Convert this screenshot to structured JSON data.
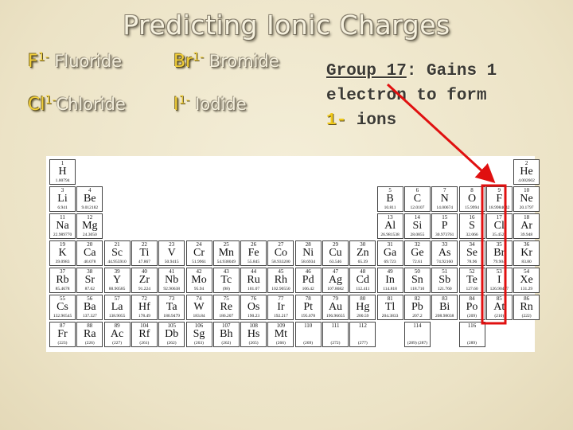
{
  "title": "Predicting Ionic Charges",
  "ions": [
    {
      "symbol": "F",
      "charge": "1-",
      "name": "Fluoride"
    },
    {
      "symbol": "Br",
      "charge": "1-",
      "name": "Bromide"
    },
    {
      "symbol": "Cl",
      "charge": "1-",
      "name": "Chloride"
    },
    {
      "symbol": "I",
      "charge": "1-",
      "name": "Iodide"
    }
  ],
  "note": {
    "group": "Group 17",
    "line1": ": Gains 1",
    "line2": "electron to form",
    "charge": "1-",
    "tail": "ions"
  },
  "table": {
    "rows": [
      [
        {
          "number": "1",
          "symbol": "H",
          "mass": "1.00794"
        },
        null,
        null,
        null,
        null,
        null,
        null,
        null,
        null,
        null,
        null,
        null,
        null,
        null,
        null,
        null,
        null,
        {
          "number": "2",
          "symbol": "He",
          "mass": "4.002602"
        }
      ],
      [
        {
          "number": "3",
          "symbol": "Li",
          "mass": "6.941"
        },
        {
          "number": "4",
          "symbol": "Be",
          "mass": "9.012182"
        },
        null,
        null,
        null,
        null,
        null,
        null,
        null,
        null,
        null,
        null,
        {
          "number": "5",
          "symbol": "B",
          "mass": "10.811"
        },
        {
          "number": "6",
          "symbol": "C",
          "mass": "12.0107"
        },
        {
          "number": "7",
          "symbol": "N",
          "mass": "14.00674"
        },
        {
          "number": "8",
          "symbol": "O",
          "mass": "15.9994"
        },
        {
          "number": "9",
          "symbol": "F",
          "mass": "18.9984032"
        },
        {
          "number": "10",
          "symbol": "Ne",
          "mass": "20.1797"
        }
      ],
      [
        {
          "number": "11",
          "symbol": "Na",
          "mass": "22.989770"
        },
        {
          "number": "12",
          "symbol": "Mg",
          "mass": "24.3050"
        },
        null,
        null,
        null,
        null,
        null,
        null,
        null,
        null,
        null,
        null,
        {
          "number": "13",
          "symbol": "Al",
          "mass": "26.981538"
        },
        {
          "number": "14",
          "symbol": "Si",
          "mass": "28.0855"
        },
        {
          "number": "15",
          "symbol": "P",
          "mass": "30.973761"
        },
        {
          "number": "16",
          "symbol": "S",
          "mass": "32.066"
        },
        {
          "number": "17",
          "symbol": "Cl",
          "mass": "35.4527"
        },
        {
          "number": "18",
          "symbol": "Ar",
          "mass": "39.948"
        }
      ],
      [
        {
          "number": "19",
          "symbol": "K",
          "mass": "39.0983"
        },
        {
          "number": "20",
          "symbol": "Ca",
          "mass": "40.078"
        },
        {
          "number": "21",
          "symbol": "Sc",
          "mass": "44.955910"
        },
        {
          "number": "22",
          "symbol": "Ti",
          "mass": "47.867"
        },
        {
          "number": "23",
          "symbol": "V",
          "mass": "50.9415"
        },
        {
          "number": "24",
          "symbol": "Cr",
          "mass": "51.9961"
        },
        {
          "number": "25",
          "symbol": "Mn",
          "mass": "54.938049"
        },
        {
          "number": "26",
          "symbol": "Fe",
          "mass": "55.845"
        },
        {
          "number": "27",
          "symbol": "Co",
          "mass": "58.933200"
        },
        {
          "number": "28",
          "symbol": "Ni",
          "mass": "58.6934"
        },
        {
          "number": "29",
          "symbol": "Cu",
          "mass": "63.546"
        },
        {
          "number": "30",
          "symbol": "Zn",
          "mass": "65.39"
        },
        {
          "number": "31",
          "symbol": "Ga",
          "mass": "69.723"
        },
        {
          "number": "32",
          "symbol": "Ge",
          "mass": "72.61"
        },
        {
          "number": "33",
          "symbol": "As",
          "mass": "74.92160"
        },
        {
          "number": "34",
          "symbol": "Se",
          "mass": "78.96"
        },
        {
          "number": "35",
          "symbol": "Br",
          "mass": "79.904"
        },
        {
          "number": "36",
          "symbol": "Kr",
          "mass": "83.80"
        }
      ],
      [
        {
          "number": "37",
          "symbol": "Rb",
          "mass": "85.4678"
        },
        {
          "number": "38",
          "symbol": "Sr",
          "mass": "87.62"
        },
        {
          "number": "39",
          "symbol": "Y",
          "mass": "88.90585"
        },
        {
          "number": "40",
          "symbol": "Zr",
          "mass": "91.224"
        },
        {
          "number": "41",
          "symbol": "Nb",
          "mass": "92.90638"
        },
        {
          "number": "42",
          "symbol": "Mo",
          "mass": "95.94"
        },
        {
          "number": "43",
          "symbol": "Tc",
          "mass": "(98)"
        },
        {
          "number": "44",
          "symbol": "Ru",
          "mass": "101.07"
        },
        {
          "number": "45",
          "symbol": "Rh",
          "mass": "102.90550"
        },
        {
          "number": "46",
          "symbol": "Pd",
          "mass": "106.42"
        },
        {
          "number": "47",
          "symbol": "Ag",
          "mass": "107.8682"
        },
        {
          "number": "48",
          "symbol": "Cd",
          "mass": "112.411"
        },
        {
          "number": "49",
          "symbol": "In",
          "mass": "114.818"
        },
        {
          "number": "50",
          "symbol": "Sn",
          "mass": "118.710"
        },
        {
          "number": "51",
          "symbol": "Sb",
          "mass": "121.760"
        },
        {
          "number": "52",
          "symbol": "Te",
          "mass": "127.60"
        },
        {
          "number": "53",
          "symbol": "I",
          "mass": "126.90447"
        },
        {
          "number": "54",
          "symbol": "Xe",
          "mass": "131.29"
        }
      ],
      [
        {
          "number": "55",
          "symbol": "Cs",
          "mass": "132.90545"
        },
        {
          "number": "56",
          "symbol": "Ba",
          "mass": "137.327"
        },
        {
          "number": "57",
          "symbol": "La",
          "mass": "138.9055"
        },
        {
          "number": "72",
          "symbol": "Hf",
          "mass": "178.49"
        },
        {
          "number": "73",
          "symbol": "Ta",
          "mass": "180.9479"
        },
        {
          "number": "74",
          "symbol": "W",
          "mass": "183.84"
        },
        {
          "number": "75",
          "symbol": "Re",
          "mass": "186.207"
        },
        {
          "number": "76",
          "symbol": "Os",
          "mass": "190.23"
        },
        {
          "number": "77",
          "symbol": "Ir",
          "mass": "192.217"
        },
        {
          "number": "78",
          "symbol": "Pt",
          "mass": "195.078"
        },
        {
          "number": "79",
          "symbol": "Au",
          "mass": "196.96655"
        },
        {
          "number": "80",
          "symbol": "Hg",
          "mass": "200.59"
        },
        {
          "number": "81",
          "symbol": "Tl",
          "mass": "204.3833"
        },
        {
          "number": "82",
          "symbol": "Pb",
          "mass": "207.2"
        },
        {
          "number": "83",
          "symbol": "Bi",
          "mass": "208.98038"
        },
        {
          "number": "84",
          "symbol": "Po",
          "mass": "(209)"
        },
        {
          "number": "85",
          "symbol": "At",
          "mass": "(210)"
        },
        {
          "number": "86",
          "symbol": "Rn",
          "mass": "(222)"
        }
      ],
      [
        {
          "number": "87",
          "symbol": "Fr",
          "mass": "(223)"
        },
        {
          "number": "88",
          "symbol": "Ra",
          "mass": "(226)"
        },
        {
          "number": "89",
          "symbol": "Ac",
          "mass": "(227)"
        },
        {
          "number": "104",
          "symbol": "Rf",
          "mass": "(261)"
        },
        {
          "number": "105",
          "symbol": "Db",
          "mass": "(262)"
        },
        {
          "number": "106",
          "symbol": "Sg",
          "mass": "(263)"
        },
        {
          "number": "107",
          "symbol": "Bh",
          "mass": "(262)"
        },
        {
          "number": "108",
          "symbol": "Hs",
          "mass": "(265)"
        },
        {
          "number": "109",
          "symbol": "Mt",
          "mass": "(266)"
        },
        {
          "number": "110",
          "mass": "(269)"
        },
        {
          "number": "111",
          "mass": "(272)"
        },
        {
          "number": "112",
          "mass": "(277)"
        },
        null,
        {
          "number": "114",
          "mass": "(289) (287)"
        },
        null,
        {
          "number": "116",
          "mass": "(289)"
        },
        null,
        null
      ]
    ]
  }
}
